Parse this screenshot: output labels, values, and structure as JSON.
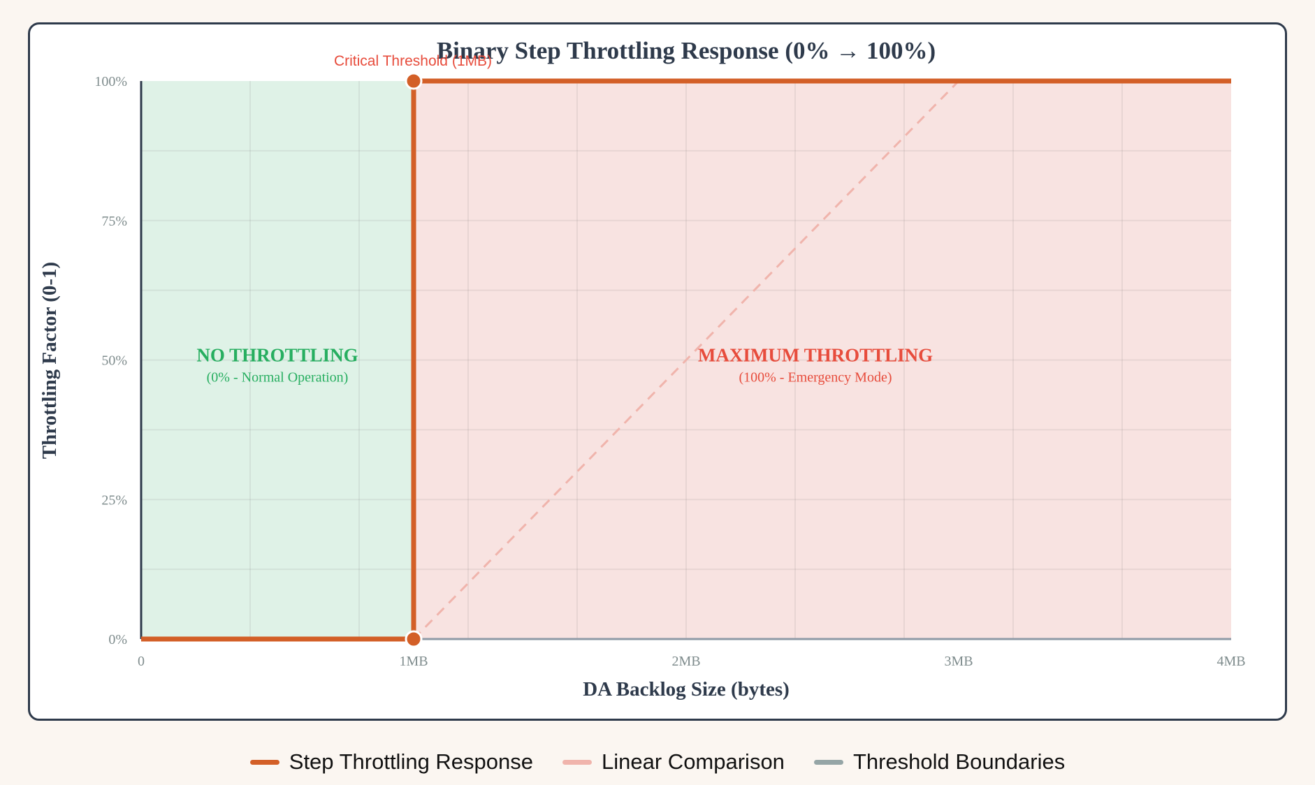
{
  "chart_data": {
    "type": "line",
    "title": "Binary Step Throttling Response (0% → 100%)",
    "xlabel": "DA Backlog Size (bytes)",
    "ylabel": "Throttling Factor (0-1)",
    "xlim": [
      0,
      4
    ],
    "ylim": [
      0,
      1
    ],
    "x_unit": "MB",
    "x_ticks": [
      {
        "value": 0,
        "label": "0"
      },
      {
        "value": 1,
        "label": "1MB"
      },
      {
        "value": 2,
        "label": "2MB"
      },
      {
        "value": 3,
        "label": "3MB"
      },
      {
        "value": 4,
        "label": "4MB"
      }
    ],
    "y_ticks": [
      {
        "value": 0,
        "label": "0%"
      },
      {
        "value": 0.25,
        "label": "25%"
      },
      {
        "value": 0.5,
        "label": "50%"
      },
      {
        "value": 0.75,
        "label": "75%"
      },
      {
        "value": 1,
        "label": "100%"
      }
    ],
    "grid": true,
    "series": [
      {
        "name": "Step Throttling Response",
        "color": "#d35f27",
        "style": "solid",
        "points": [
          [
            0,
            0
          ],
          [
            1,
            0
          ],
          [
            1,
            1
          ],
          [
            4,
            1
          ]
        ]
      },
      {
        "name": "Linear Comparison",
        "color": "#f0b4ac",
        "style": "dashed",
        "points": [
          [
            1,
            0
          ],
          [
            3,
            1
          ]
        ]
      },
      {
        "name": "Threshold Boundaries",
        "color": "#95a5a6",
        "style": "solid",
        "points": []
      }
    ],
    "regions": [
      {
        "x_from": 0,
        "x_to": 1,
        "color": "#dff2e7",
        "label": "NO THROTTLING",
        "sublabel": "(0% - Normal Operation)",
        "label_color": "#27ae60"
      },
      {
        "x_from": 1,
        "x_to": 4,
        "color": "#f8e3e1",
        "label": "MAXIMUM THROTTLING",
        "sublabel": "(100% - Emergency Mode)",
        "label_color": "#e74c3c"
      }
    ],
    "annotations": [
      {
        "text": "Critical Threshold (1MB)",
        "x": 1,
        "y": 1,
        "color": "#e74c3c"
      }
    ],
    "legend_position": "bottom-center"
  }
}
